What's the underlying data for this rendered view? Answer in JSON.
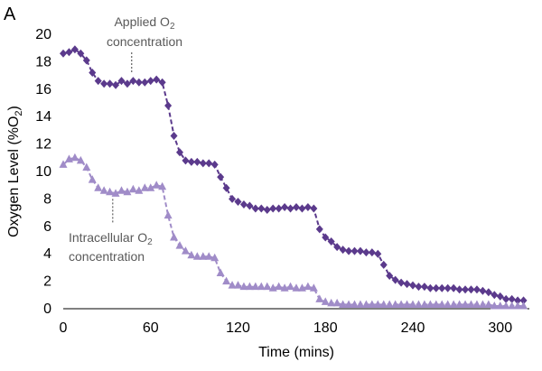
{
  "chart_data": {
    "type": "line",
    "panel_label": "A",
    "xlabel": "Time (mins)",
    "ylabel_prefix": "Oxygen Level (%O",
    "ylabel_sub": "2",
    "ylabel_suffix": ")",
    "xlim": [
      0,
      320
    ],
    "ylim": [
      0,
      20
    ],
    "xticks": [
      0,
      60,
      120,
      180,
      240,
      300
    ],
    "yticks": [
      0,
      2,
      4,
      6,
      8,
      10,
      12,
      14,
      16,
      18,
      20
    ],
    "grid": false,
    "legend": "none",
    "series": [
      {
        "key": "applied",
        "marker": "diamond",
        "color": "#5b3a8c",
        "x": [
          0,
          4,
          8,
          12,
          16,
          20,
          24,
          28,
          32,
          36,
          40,
          44,
          48,
          52,
          56,
          60,
          64,
          68,
          72,
          76,
          80,
          84,
          88,
          92,
          96,
          100,
          104,
          108,
          112,
          116,
          120,
          124,
          128,
          132,
          136,
          140,
          144,
          148,
          152,
          156,
          160,
          164,
          168,
          172,
          176,
          180,
          184,
          188,
          192,
          196,
          200,
          204,
          208,
          212,
          216,
          220,
          224,
          228,
          232,
          236,
          240,
          244,
          248,
          252,
          256,
          260,
          264,
          268,
          272,
          276,
          280,
          284,
          288,
          292,
          296,
          300,
          304,
          308,
          312,
          316
        ],
        "y": [
          18.6,
          18.7,
          18.9,
          18.6,
          18.1,
          17.2,
          16.6,
          16.4,
          16.4,
          16.3,
          16.6,
          16.4,
          16.6,
          16.5,
          16.5,
          16.6,
          16.7,
          16.5,
          14.8,
          12.6,
          11.4,
          10.8,
          10.7,
          10.7,
          10.6,
          10.6,
          10.5,
          9.6,
          8.8,
          8.0,
          7.8,
          7.6,
          7.5,
          7.3,
          7.3,
          7.2,
          7.3,
          7.3,
          7.4,
          7.3,
          7.4,
          7.3,
          7.4,
          7.3,
          5.8,
          5.2,
          4.9,
          4.5,
          4.3,
          4.2,
          4.2,
          4.2,
          4.1,
          4.1,
          4.0,
          3.2,
          2.4,
          2.1,
          1.9,
          1.8,
          1.7,
          1.6,
          1.6,
          1.5,
          1.5,
          1.5,
          1.5,
          1.5,
          1.4,
          1.4,
          1.4,
          1.4,
          1.3,
          1.2,
          1.0,
          0.9,
          0.7,
          0.7,
          0.6,
          0.6
        ]
      },
      {
        "key": "intracellular",
        "marker": "triangle",
        "color": "#a08cc8",
        "x": [
          0,
          4,
          8,
          12,
          16,
          20,
          24,
          28,
          32,
          36,
          40,
          44,
          48,
          52,
          56,
          60,
          64,
          68,
          72,
          76,
          80,
          84,
          88,
          92,
          96,
          100,
          104,
          108,
          112,
          116,
          120,
          124,
          128,
          132,
          136,
          140,
          144,
          148,
          152,
          156,
          160,
          164,
          168,
          172,
          176,
          180,
          184,
          188,
          192,
          196,
          200,
          204,
          208,
          212,
          216,
          220,
          224,
          228,
          232,
          236,
          240,
          244,
          248,
          252,
          256,
          260,
          264,
          268,
          272,
          276,
          280,
          284,
          288,
          292,
          296,
          300,
          304,
          308,
          312,
          316
        ],
        "y": [
          10.5,
          10.9,
          11.0,
          10.8,
          10.3,
          9.4,
          8.8,
          8.6,
          8.5,
          8.4,
          8.6,
          8.5,
          8.7,
          8.6,
          8.8,
          8.8,
          9.0,
          8.9,
          6.8,
          5.2,
          4.6,
          4.2,
          3.9,
          3.8,
          3.8,
          3.8,
          3.7,
          2.6,
          2.0,
          1.7,
          1.7,
          1.6,
          1.6,
          1.6,
          1.6,
          1.6,
          1.5,
          1.6,
          1.5,
          1.6,
          1.5,
          1.5,
          1.6,
          1.5,
          0.7,
          0.5,
          0.4,
          0.4,
          0.3,
          0.3,
          0.3,
          0.3,
          0.3,
          0.3,
          0.3,
          0.3,
          0.3,
          0.3,
          0.3,
          0.3,
          0.3,
          0.3,
          0.3,
          0.3,
          0.3,
          0.3,
          0.3,
          0.3,
          0.3,
          0.3,
          0.3,
          0.3,
          0.3,
          0.3,
          0.2,
          0.2,
          0.2,
          0.2,
          0.2,
          0.2
        ]
      }
    ],
    "annotations": [
      {
        "key": "applied",
        "line1_prefix": "Applied O",
        "line1_sub": "2",
        "line2": "concentration",
        "x": 47,
        "y": 16.6
      },
      {
        "key": "intracellular",
        "line1_prefix": "Intracellular O",
        "line1_sub": "2",
        "line2": "concentration",
        "x": 34,
        "y": 8.4
      }
    ]
  }
}
